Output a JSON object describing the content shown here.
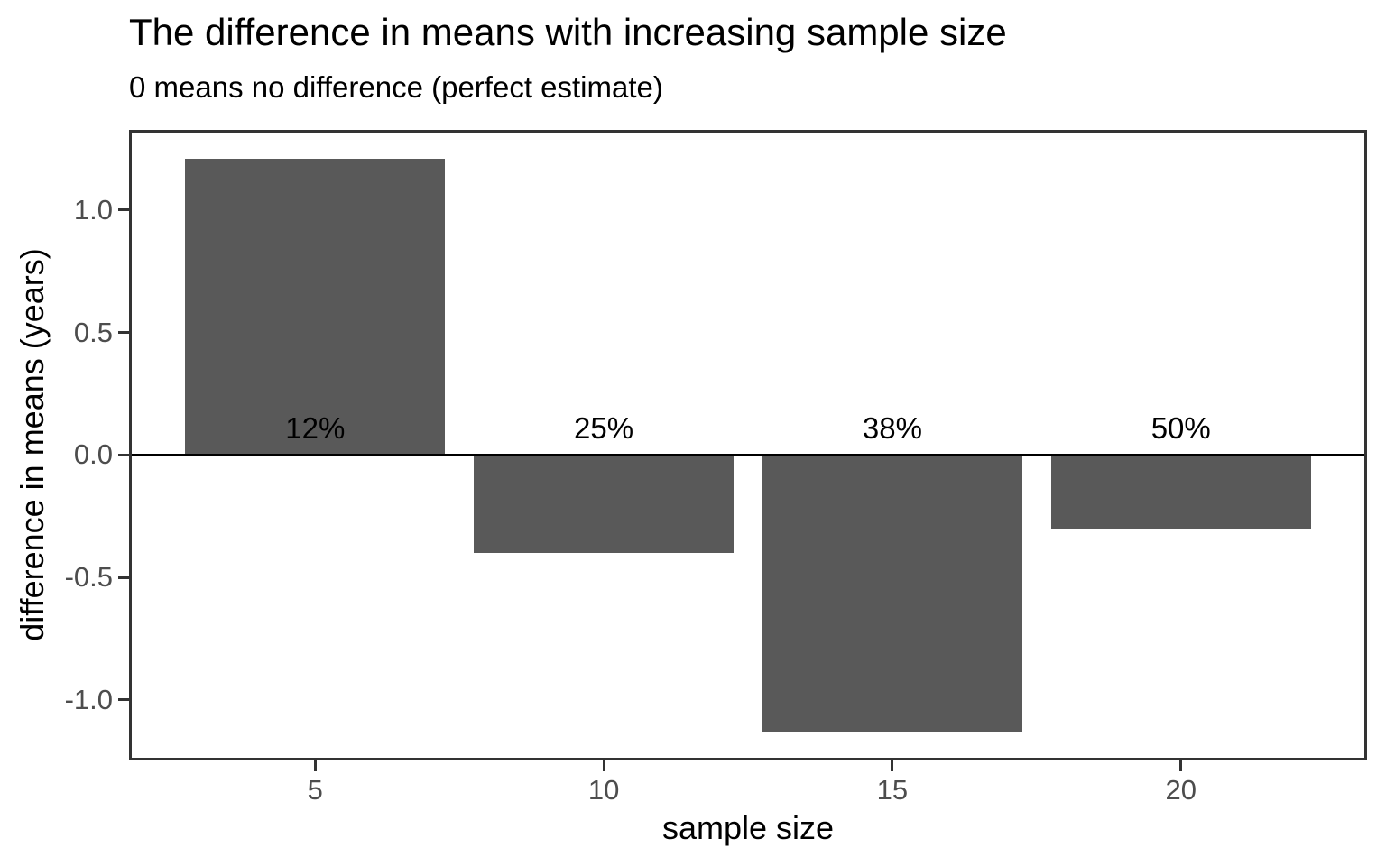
{
  "chart_data": {
    "type": "bar",
    "title": "The difference in means with increasing sample size",
    "subtitle": "0 means no difference (perfect estimate)",
    "xlabel": "sample size",
    "ylabel": "difference in means (years)",
    "x": [
      5,
      10,
      15,
      20
    ],
    "values": [
      1.21,
      -0.4,
      -1.13,
      -0.3
    ],
    "bar_labels": [
      "12%",
      "25%",
      "38%",
      "50%"
    ],
    "bar_width_data_units": 4.5,
    "x_ticks": [
      5,
      10,
      15,
      20
    ],
    "x_tick_labels": [
      "5",
      "10",
      "15",
      "20"
    ],
    "y_ticks": [
      1.0,
      0.5,
      0.0,
      -0.5,
      -1.0
    ],
    "y_tick_labels": [
      "1.0",
      "0.5",
      "0.0",
      "-0.5",
      "-1.0"
    ],
    "xlim": [
      1.775,
      23.225
    ],
    "ylim": [
      -1.247,
      1.327
    ],
    "zero_reference_line": 0,
    "grid": false,
    "legend_position": "none",
    "colors": {
      "bar_fill": "#595959",
      "axis_tick_text": "#4d4d4d",
      "panel_border": "#333333",
      "zero_line": "#000000",
      "title_text": "#000000",
      "background": "#ffffff"
    }
  }
}
